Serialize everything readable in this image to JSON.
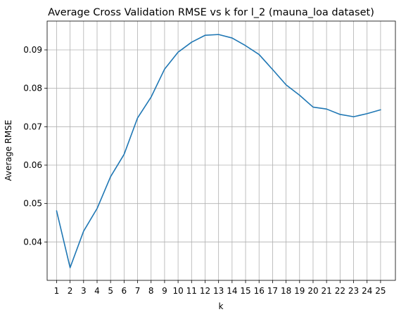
{
  "chart_data": {
    "type": "line",
    "title": "Average Cross Validation RMSE vs k for l_2 (mauna_loa dataset)",
    "xlabel": "k",
    "ylabel": "Average RMSE",
    "x": [
      1,
      2,
      3,
      4,
      5,
      6,
      7,
      8,
      9,
      10,
      11,
      12,
      13,
      14,
      15,
      16,
      17,
      18,
      19,
      20,
      21,
      22,
      23,
      24,
      25
    ],
    "series": [
      {
        "values": [
          0.0481,
          0.0333,
          0.0428,
          0.0487,
          0.057,
          0.0628,
          0.0723,
          0.0777,
          0.085,
          0.0894,
          0.092,
          0.0938,
          0.094,
          0.0931,
          0.0911,
          0.0888,
          0.0849,
          0.0809,
          0.0782,
          0.0751,
          0.0746,
          0.0732,
          0.0726,
          0.0734,
          0.0744
        ],
        "color": "#1f77b4"
      }
    ],
    "xlim": [
      0.3,
      26.1
    ],
    "ylim": [
      0.03,
      0.0975
    ],
    "yticks": [
      0.04,
      0.05,
      0.06,
      0.07,
      0.08,
      0.09
    ],
    "ytick_labels": [
      "0.04",
      "0.05",
      "0.06",
      "0.07",
      "0.08",
      "0.09"
    ],
    "xticks": [
      1,
      2,
      3,
      4,
      5,
      6,
      7,
      8,
      9,
      10,
      11,
      12,
      13,
      14,
      15,
      16,
      17,
      18,
      19,
      20,
      21,
      22,
      23,
      24,
      25
    ],
    "xtick_labels": [
      "1",
      "2",
      "3",
      "4",
      "5",
      "6",
      "7",
      "8",
      "9",
      "10",
      "11",
      "12",
      "13",
      "14",
      "15",
      "16",
      "17",
      "18",
      "19",
      "20",
      "21",
      "22",
      "23",
      "24",
      "25"
    ],
    "grid": true,
    "grid_color": "#b0b0b0",
    "legend": "none"
  }
}
